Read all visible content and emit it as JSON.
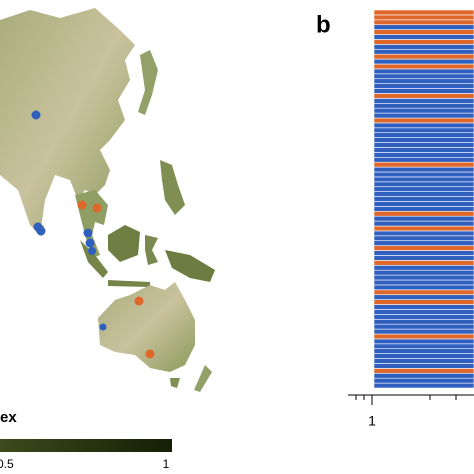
{
  "panel_b": {
    "label": "b",
    "axis_tick": "1"
  },
  "legend": {
    "title": "ex",
    "min_label": "0.5",
    "max_label": "1"
  }
}
